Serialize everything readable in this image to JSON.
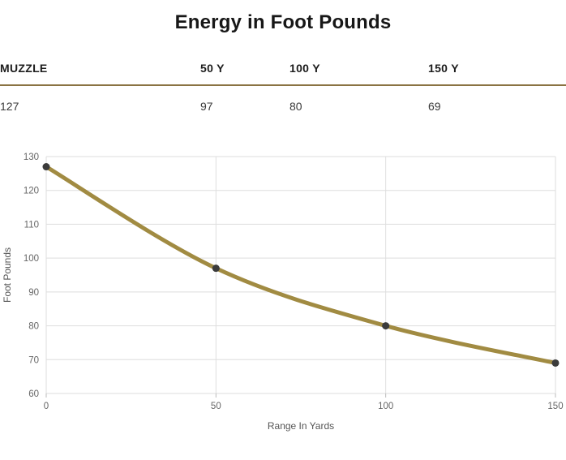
{
  "title": "Energy in Foot Pounds",
  "table": {
    "headers": [
      "MUZZLE",
      "50 Y",
      "100 Y",
      "150 Y"
    ],
    "values": [
      "127",
      "97",
      "80",
      "69"
    ]
  },
  "colors": {
    "accent": "#8a7342",
    "line": "#a18b42",
    "point": "#3b3b3b"
  },
  "chart_data": {
    "type": "line",
    "title": "Energy in Foot Pounds",
    "x": [
      0,
      50,
      100,
      150
    ],
    "values": [
      127,
      97,
      80,
      69
    ],
    "xlabel": "Range In Yards",
    "ylabel": "Foot Pounds",
    "xlim": [
      0,
      150
    ],
    "ylim": [
      60,
      130
    ],
    "xticks": [
      0,
      50,
      100,
      150
    ],
    "yticks": [
      60,
      70,
      80,
      90,
      100,
      110,
      120,
      130
    ],
    "grid": true,
    "legend": "none"
  }
}
